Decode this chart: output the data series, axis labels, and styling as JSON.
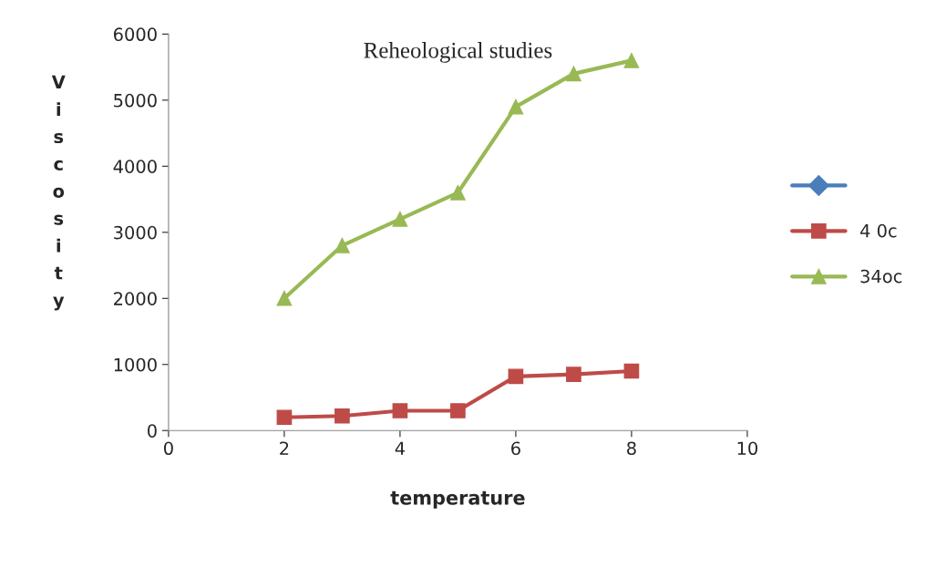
{
  "chart_data": {
    "type": "line",
    "title": "Reheological studies",
    "xlabel": "temperature",
    "ylabel": "Viscosity",
    "x": [
      2,
      3,
      4,
      5,
      6,
      7,
      8
    ],
    "series": [
      {
        "color": "#4a7ebb",
        "marker": "diamond",
        "values": [
          null,
          null,
          null,
          null,
          null,
          null,
          null
        ]
      },
      {
        "name": "4 0c",
        "color": "#be4b48",
        "marker": "square",
        "values": [
          200,
          220,
          300,
          300,
          820,
          850,
          900
        ]
      },
      {
        "name": "34oc",
        "color": "#98b954",
        "marker": "triangle",
        "values": [
          2000,
          2800,
          3200,
          3600,
          4900,
          5400,
          5600
        ]
      }
    ],
    "xlim": [
      0,
      10
    ],
    "xticks": [
      0,
      2,
      4,
      6,
      8,
      10
    ],
    "ylim": [
      0,
      6000
    ],
    "yticks": [
      0,
      1000,
      2000,
      3000,
      4000,
      5000,
      6000
    ],
    "grid": false,
    "legend": "right",
    "line_style": "solid"
  }
}
